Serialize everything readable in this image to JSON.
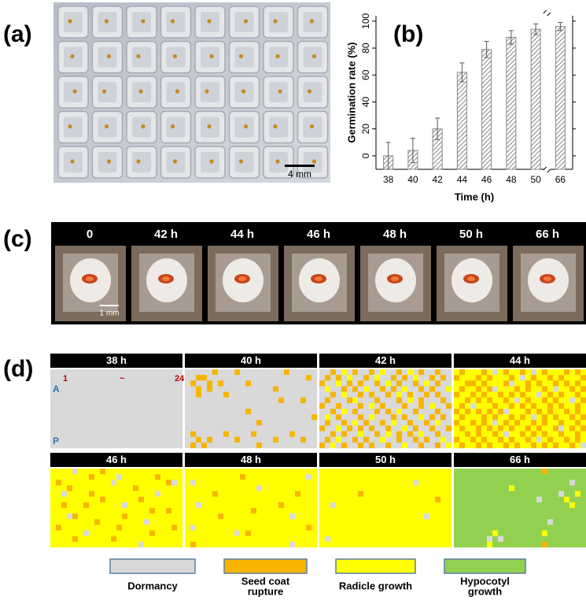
{
  "panel_labels": [
    "(a)",
    "(b)",
    "(c)",
    "(d)"
  ],
  "panel_a": {
    "scale_bar": "4 mm"
  },
  "chart_data": {
    "type": "bar",
    "categories": [
      "38",
      "40",
      "42",
      "44",
      "46",
      "48",
      "50",
      "66"
    ],
    "values": [
      0,
      4,
      20,
      62,
      79,
      88,
      94,
      96
    ],
    "errors": [
      10,
      9,
      8,
      7,
      6,
      5,
      4,
      3
    ],
    "x_label": "Time (h)",
    "y_label": "Germination rate (%)",
    "ylim": [
      -10,
      104
    ],
    "yticks": [
      0,
      20,
      40,
      60,
      80,
      100
    ],
    "color": "#888888"
  },
  "panel_c": {
    "times": [
      "0",
      "42 h",
      "44 h",
      "46 h",
      "48 h",
      "50 h",
      "66 h"
    ],
    "scale_bar": "1 mm"
  },
  "panel_d": {
    "annotations": {
      "col_start": "1",
      "col_sep": "~",
      "col_end": "24",
      "row_top": "A",
      "row_bottom": "P"
    },
    "panels": [
      {
        "title": "38 h",
        "rows": [
          "000000000000000000000000",
          "000000000000000000000000",
          "000000000000000000000000",
          "000000000000000000000000",
          "000000000000000000000000",
          "000000000000000000000000",
          "000000000000000000000000",
          "000000000000000000000000",
          "000000000000000000000000",
          "000000000000000000000000",
          "000000000000000000000000",
          "000000000000000000000000",
          "000000000000000000000000",
          "000000000000000000000000"
        ]
      },
      {
        "title": "40 h",
        "rows": [
          "000001000100000000100000",
          "001100000000000000000010",
          "010010100001000000000000",
          "001010000000000010000000",
          "001000010000000000000000",
          "000000000000000001000100",
          "000000000000000000000000",
          "000000000001000000000000",
          "000000000000000000000001",
          "000000000000010000000000",
          "000000000000000000000000",
          "010000010000100000010000",
          "001010000100000010000100",
          "010100000000010000000000"
        ]
      },
      {
        "title": "42 h",
        "rows": [
          "001020100102001020100100",
          "010102001020010102001010",
          "100201010010201001020100",
          "020010102001010200101002",
          "001020010100102010010100",
          "010001200010001020100010",
          "100100010201000100102001",
          "001020100010102001000100",
          "020100010200010100201010",
          "010010201001020010010200",
          "100201010100100201001001",
          "001010020010201010200100",
          "010200101002001001010020",
          "102010010100100200100102"
        ]
      },
      {
        "title": "44 h",
        "rows": [
          "212221202122120212221212",
          "122212122212021221212221",
          "221121222102212122121212",
          "212212102221212212022121",
          "122121221212122021212212",
          "221212122120212212122021",
          "212022212212121221212212",
          "121212121022212121221212",
          "212221212212120212122121",
          "122121202121221212212212",
          "212212121212212122102121",
          "221212212022121212212212",
          "122121221212212021221212",
          "212212122121221212122120"
        ]
      },
      {
        "title": "46 h",
        "rows": [
          "222202222122222222222222",
          "222222212222022222212222",
          "212222222220222222222102",
          "222122222222222122222222",
          "220222212222222222202222",
          "222222222122222212222222",
          "221222122222202222222222",
          "222222222222222222122122",
          "222012222222212222222222",
          "222222221222222220222222",
          "212222222222122222222212",
          "222222022222222222122222",
          "222212222221222222222222",
          "222222222222222202222222"
        ]
      },
      {
        "title": "48 h",
        "rows": [
          "222222222222222222222222",
          "222222222212222222222202",
          "202222222222222222222222",
          "222222222222202222222222",
          "222221222222222222221222",
          "222222222222222222222222",
          "220222222222222221222222",
          "222222222222122222222222",
          "222222122222222222202222",
          "222222222222222222222222",
          "202222222222222222222212",
          "222222222021222222222222",
          "222222222222222222222222",
          "212222222222222222202222"
        ]
      },
      {
        "title": "50 h",
        "rows": [
          "222222222222222222222222",
          "222222222222222222222222",
          "222222222222222220222222",
          "222222222222222222222222",
          "222222212222222222222222",
          "222222222222222222222122",
          "220222222222222222222222",
          "222222222222222222222222",
          "222222222222222222202222",
          "222222222222222222222222",
          "222222222222222222222222",
          "222222222222222222222222",
          "202222222222222222222222",
          "222222222222222222222222"
        ]
      },
      {
        "title": "66 h",
        "rows": [
          "333333333333333313333333",
          "333333333333333333333333",
          "333333333333333333333033",
          "333333333323333333333333",
          "333333333333333333303323",
          "333333333333333033332333",
          "333333333333333333333233",
          "333333333333333333333333",
          "333333333333333333333333",
          "333333333333333330333333",
          "333333333333333333333333",
          "333333323333333323333333",
          "333333030333333333333333",
          "333333233333333313333333"
        ]
      }
    ],
    "legend": [
      {
        "lines": [
          "Dormancy"
        ],
        "color": "#d9d9d9"
      },
      {
        "lines": [
          "Seed coat",
          "rupture"
        ],
        "color": "#f7b500"
      },
      {
        "lines": [
          "Radicle growth"
        ],
        "color": "#ffff00"
      },
      {
        "lines": [
          "Hypocotyl",
          "growth"
        ],
        "color": "#92d050"
      }
    ]
  }
}
